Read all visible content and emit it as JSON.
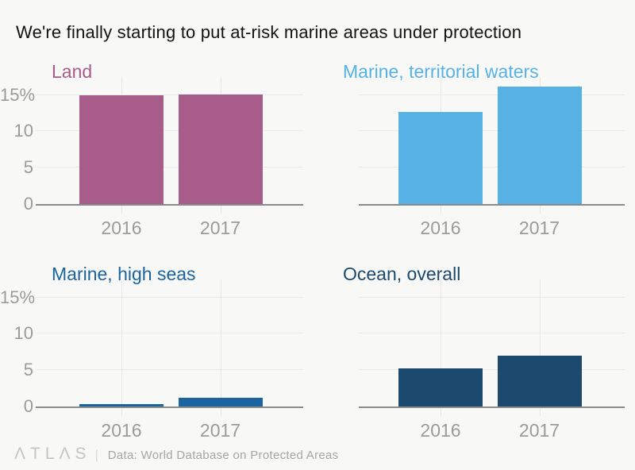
{
  "title": "We're finally starting to put at-risk marine areas under protection",
  "colors": {
    "background": "#f8f8f7",
    "title_text": "#131313",
    "axis_label": "#9b9b9b",
    "gridline": "#ebebea",
    "tickline": "#e7e7e6",
    "baseline": "#8a8a8a",
    "land": "#a75c8a",
    "marine_territorial": "#58b1e4",
    "marine_high_seas": "#1b64a0",
    "ocean_overall": "#1c4a6e",
    "footer_logo": "#c4c4c4",
    "footer_text": "#a6a6a6"
  },
  "chart_data": {
    "type": "bar",
    "title": "We're finally starting to put at-risk marine areas under protection",
    "categories": [
      "2016",
      "2017"
    ],
    "unit": "%",
    "y_ticks": [
      0,
      5,
      10,
      15
    ],
    "y_tick_labels": [
      "0",
      "5",
      "10",
      "15%"
    ],
    "ylim": [
      0,
      17.5
    ],
    "grid": true,
    "legend_position": "panel-titles",
    "series": [
      {
        "name": "Land",
        "color": "#a75c8a",
        "values": [
          14.9,
          15.1
        ]
      },
      {
        "name": "Marine, territorial waters",
        "color": "#58b1e4",
        "values": [
          12.7,
          16.1
        ]
      },
      {
        "name": "Marine, high seas",
        "color": "#1b64a0",
        "values": [
          0.3,
          1.2
        ]
      },
      {
        "name": "Ocean, overall",
        "color": "#1c4a6e",
        "values": [
          5.2,
          7.0
        ]
      }
    ]
  },
  "footer": {
    "logo": "ATLAS",
    "logo_display": "ΛTLΛS",
    "divider": "|",
    "source": "Data: World Database on Protected Areas"
  }
}
